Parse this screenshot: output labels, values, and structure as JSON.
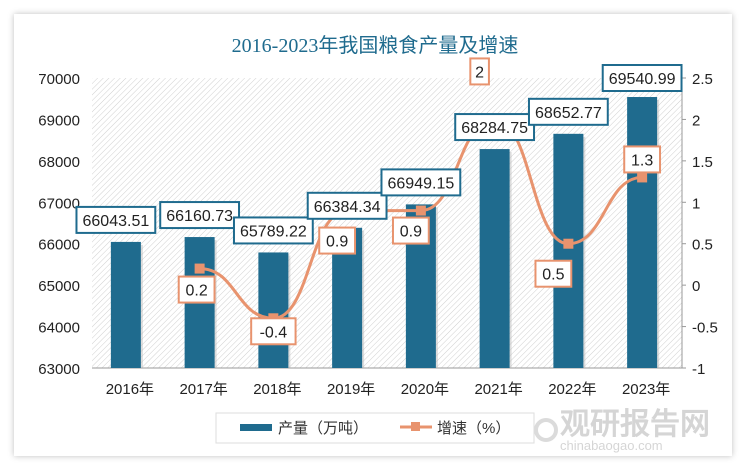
{
  "chart_data": {
    "type": "bar+line",
    "title": "2016-2023年我国粮食产量及增速",
    "categories": [
      "2016年",
      "2017年",
      "2018年",
      "2019年",
      "2020年",
      "2021年",
      "2022年",
      "2023年"
    ],
    "series": [
      {
        "name": "产量（万吨）",
        "type": "bar",
        "axis": "left",
        "color": "#1f6b8e",
        "values": [
          66043.51,
          66160.73,
          65789.22,
          66384.34,
          66949.15,
          68284.75,
          68652.77,
          69540.99
        ],
        "labels": [
          "66043.51",
          "66160.73",
          "65789.22",
          "66384.34",
          "66949.15",
          "68284.75",
          "68652.77",
          "69540.99"
        ]
      },
      {
        "name": "增速（%）",
        "type": "line",
        "axis": "right",
        "color": "#e8936e",
        "values": [
          null,
          0.2,
          -0.4,
          0.9,
          0.9,
          2,
          0.5,
          1.3
        ],
        "labels": [
          "",
          "0.2",
          "-0.4",
          "0.9",
          "0.9",
          "2",
          "0.5",
          "1.3"
        ]
      }
    ],
    "y_left": {
      "range": [
        63000,
        70000
      ],
      "ticks": [
        "63000",
        "64000",
        "65000",
        "66000",
        "67000",
        "68000",
        "69000",
        "70000"
      ]
    },
    "y_right": {
      "range": [
        -1,
        2.5
      ],
      "ticks": [
        "-1",
        "-0.5",
        "0",
        "0.5",
        "1",
        "1.5",
        "2",
        "2.5"
      ]
    },
    "legend": "bottom",
    "grid": false
  },
  "watermark": {
    "brand": "观研报告网",
    "site": "chinabaogao.com"
  }
}
